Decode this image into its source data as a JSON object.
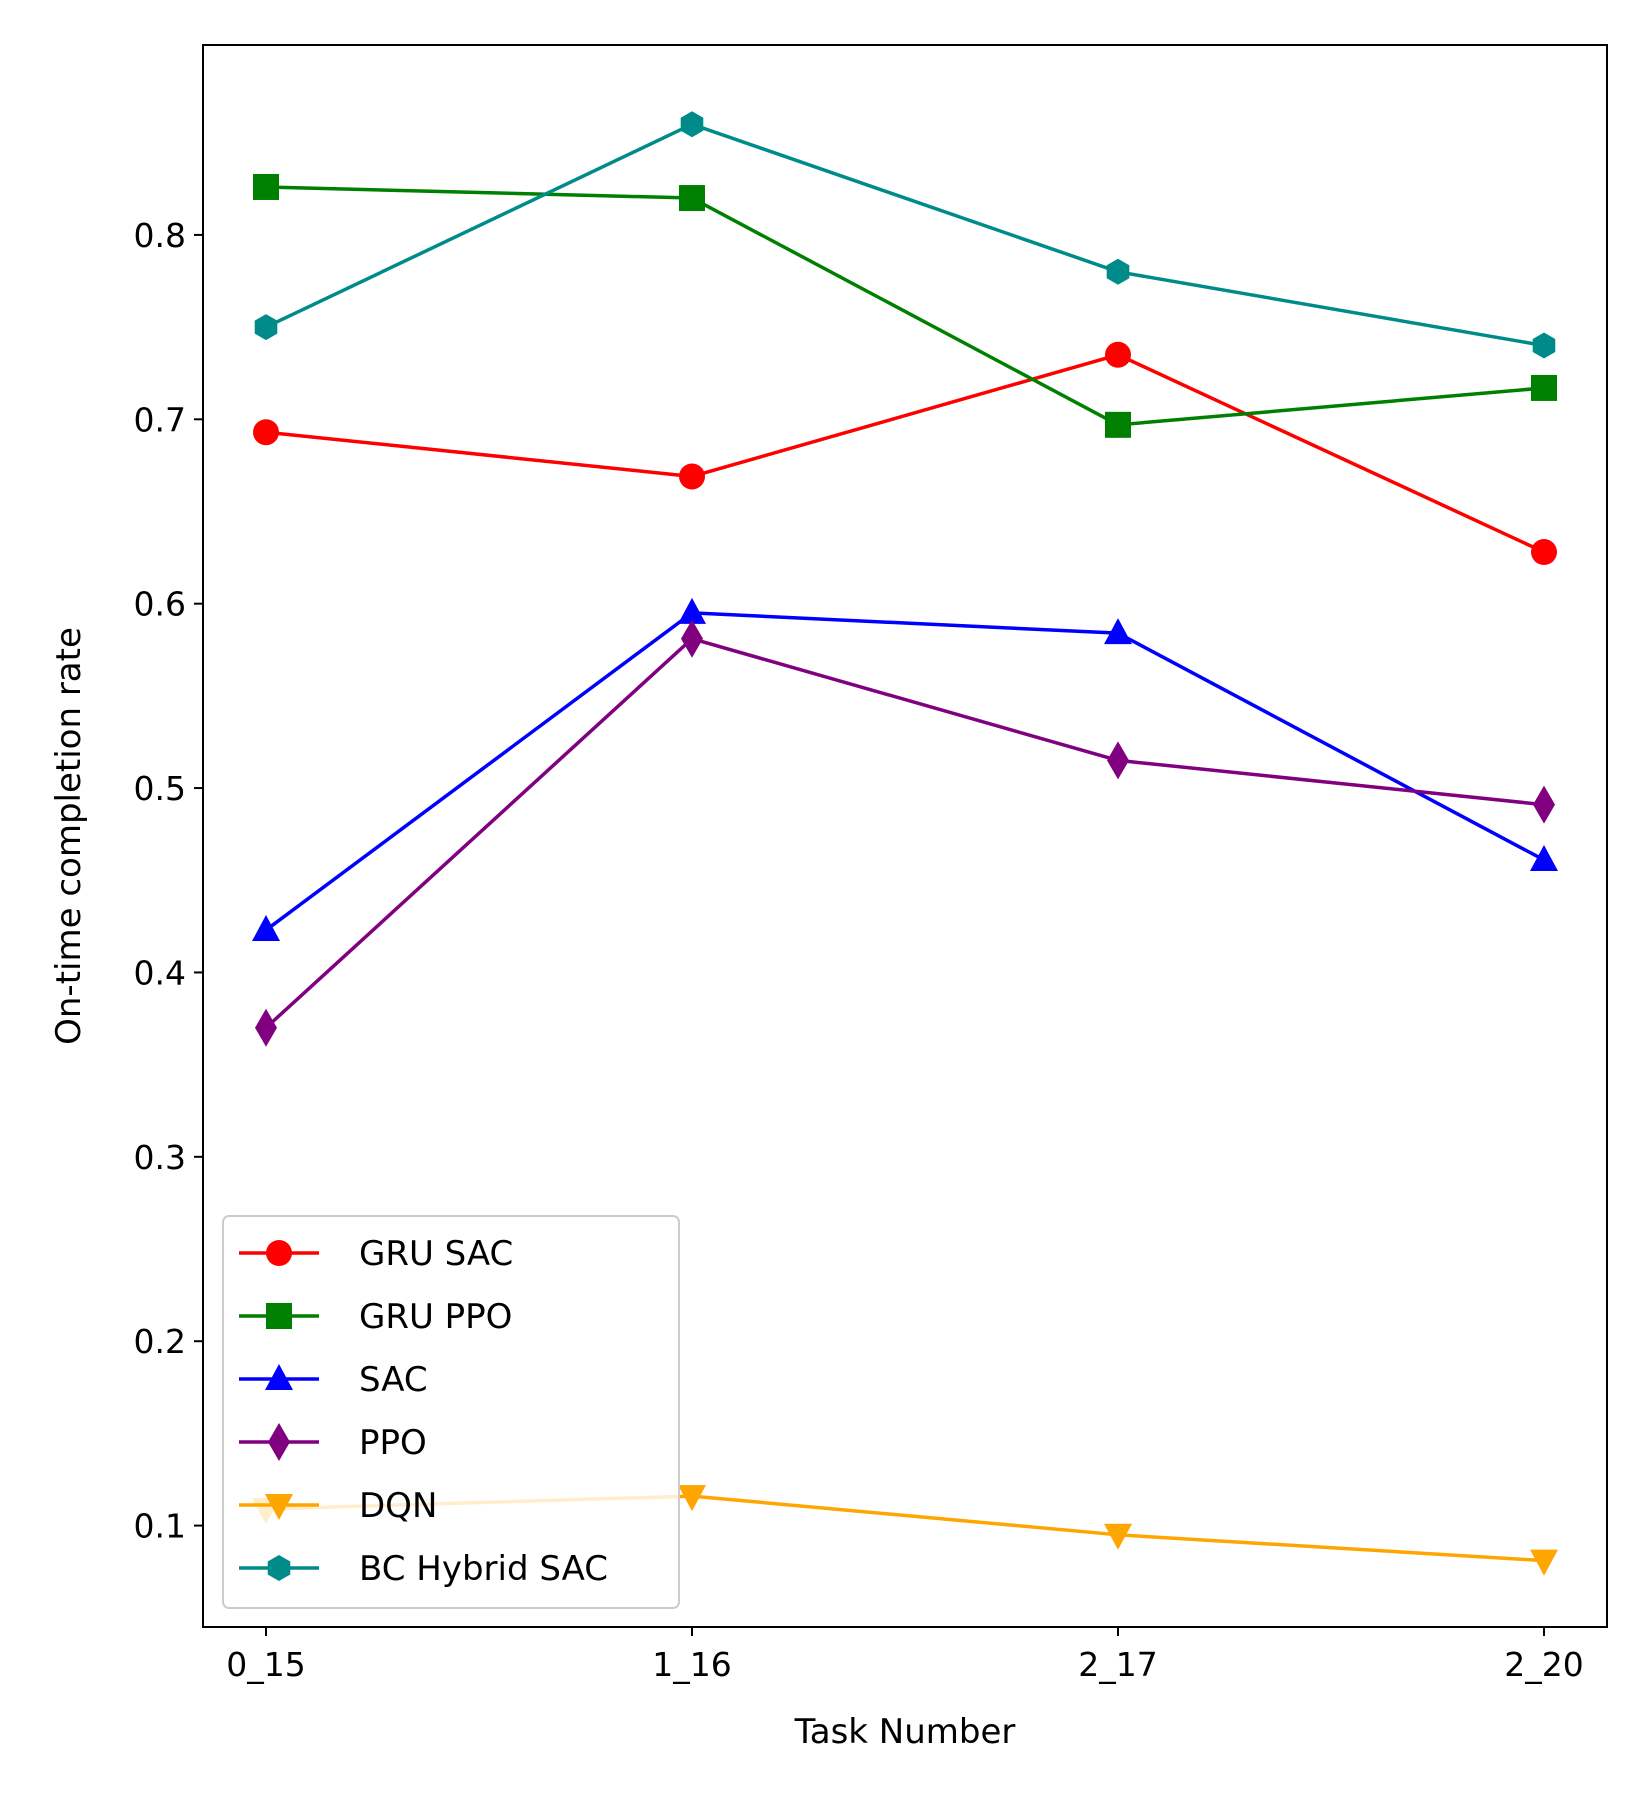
{
  "chart_data": {
    "type": "line",
    "title": "",
    "xlabel": "Task Number",
    "ylabel": "On-time completion rate",
    "categories": [
      "0_15",
      "1_16",
      "2_17",
      "2_20"
    ],
    "ylim": [
      0.045,
      0.903
    ],
    "yticks": [
      0.1,
      0.2,
      0.3,
      0.4,
      0.5,
      0.6,
      0.7,
      0.8
    ],
    "ytick_labels": [
      "0.1",
      "0.2",
      "0.3",
      "0.4",
      "0.5",
      "0.6",
      "0.7",
      "0.8"
    ],
    "legend_position": "lower-left",
    "series": [
      {
        "name": "GRU SAC",
        "color": "#ff0000",
        "marker": "circle",
        "values": [
          0.693,
          0.669,
          0.735,
          0.628
        ]
      },
      {
        "name": "GRU PPO",
        "color": "#008000",
        "marker": "square",
        "values": [
          0.826,
          0.82,
          0.697,
          0.717
        ]
      },
      {
        "name": "SAC",
        "color": "#0000ff",
        "marker": "triangle-up",
        "values": [
          0.423,
          0.595,
          0.584,
          0.461
        ]
      },
      {
        "name": "PPO",
        "color": "#800080",
        "marker": "diamond",
        "values": [
          0.37,
          0.581,
          0.515,
          0.491
        ]
      },
      {
        "name": "DQN",
        "color": "#ffa500",
        "marker": "triangle-down",
        "values": [
          0.109,
          0.116,
          0.095,
          0.081
        ]
      },
      {
        "name": "BC Hybrid SAC",
        "color": "#008b8b",
        "marker": "hexagon",
        "values": [
          0.75,
          0.86,
          0.78,
          0.74
        ]
      }
    ]
  }
}
